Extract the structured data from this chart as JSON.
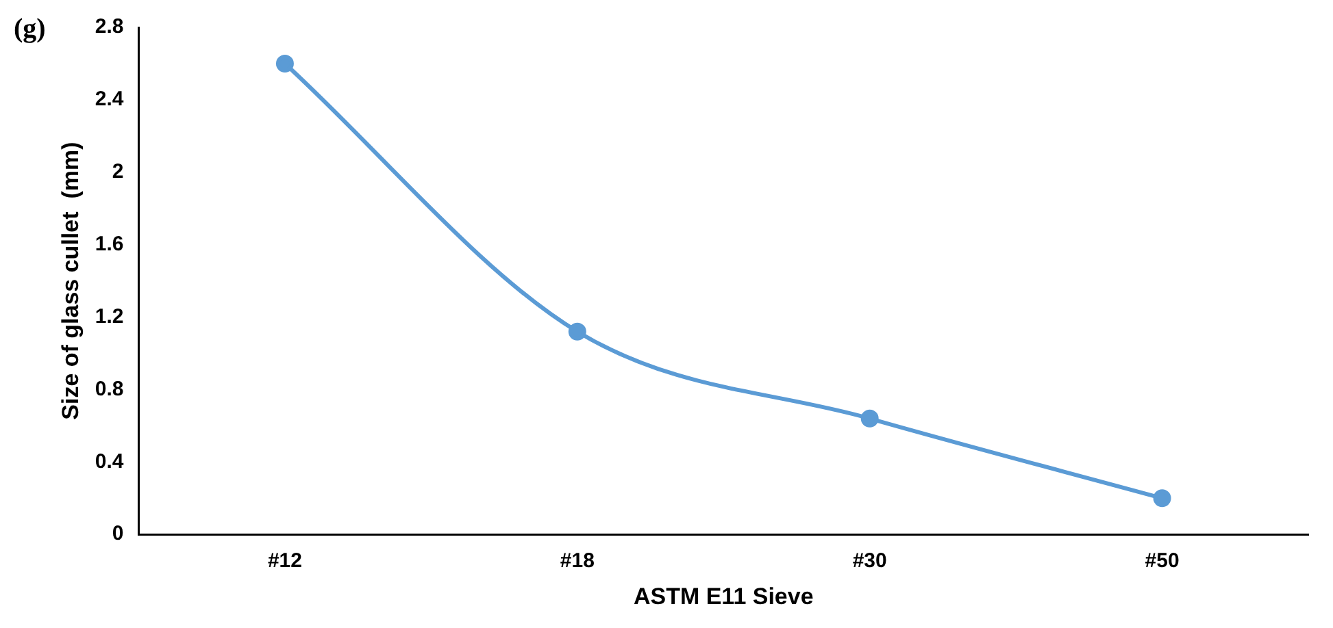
{
  "chart_data": {
    "type": "line",
    "xlabel": "ASTM E11 Sieve",
    "ylabel": "Size of glass cullet  (mm)",
    "annotations": [
      "(g)"
    ],
    "categories": [
      "#12",
      "#18",
      "#30",
      "#50"
    ],
    "series": [
      {
        "color": "#5b9bd5",
        "values": [
          2.6,
          1.12,
          0.64,
          0.2
        ]
      }
    ],
    "ylim": [
      0,
      2.8
    ],
    "yticks": [
      0,
      0.4,
      0.8,
      1.2,
      1.6,
      2,
      2.4,
      2.8
    ],
    "grid": false,
    "legend": false,
    "marker": "circle",
    "line_style": "solid"
  }
}
